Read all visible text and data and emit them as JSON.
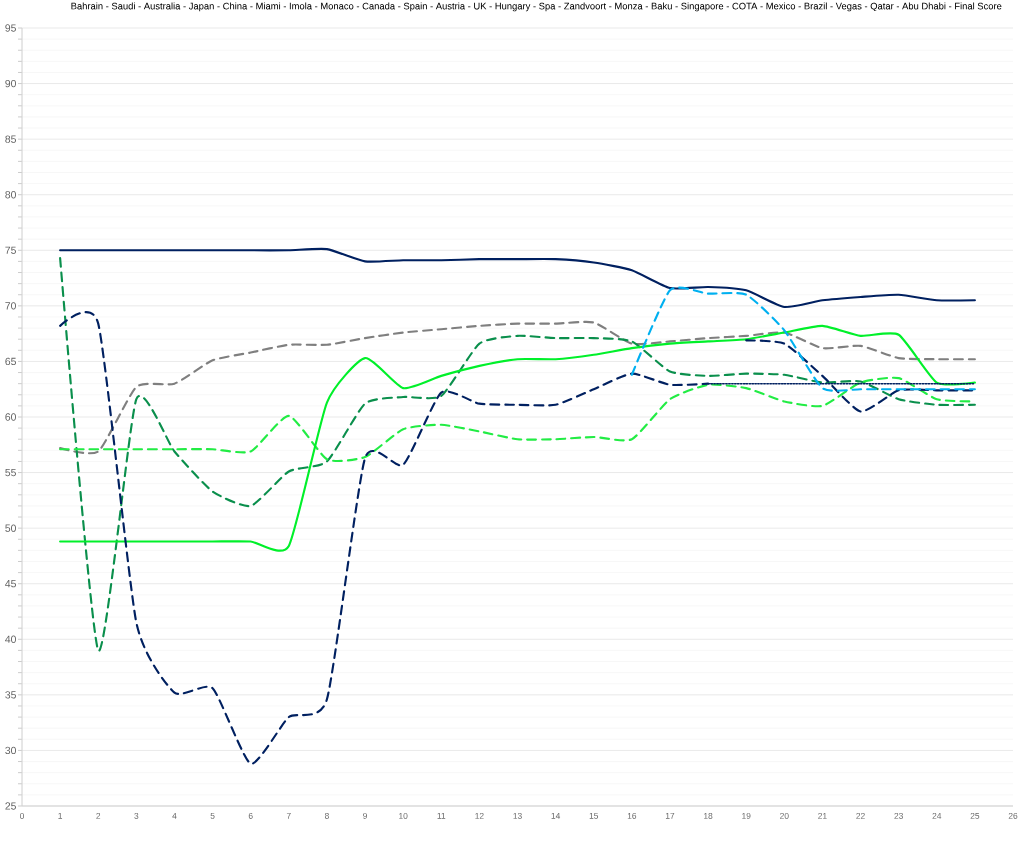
{
  "chart_data": {
    "type": "line",
    "title": "Bahrain - Saudi - Australia - Japan - China - Miami - Imola - Monaco - Canada - Spain - Austria - UK - Hungary - Spa - Zandvoort - Monza - Baku - Singapore - COTA - Mexico - Brazil - Vegas - Qatar - Abu Dhabi - Final Score",
    "x": [
      1,
      2,
      3,
      4,
      5,
      6,
      7,
      8,
      9,
      10,
      11,
      12,
      13,
      14,
      15,
      16,
      17,
      18,
      19,
      20,
      21,
      22,
      23,
      24,
      25
    ],
    "xlim": [
      0,
      26
    ],
    "xticks": [
      0,
      1,
      2,
      3,
      4,
      5,
      6,
      7,
      8,
      9,
      10,
      11,
      12,
      13,
      14,
      15,
      16,
      17,
      18,
      19,
      20,
      21,
      22,
      23,
      24,
      25,
      26
    ],
    "ylim": [
      25,
      95
    ],
    "yticks": [
      25,
      30,
      35,
      40,
      45,
      50,
      55,
      60,
      65,
      70,
      75,
      80,
      85,
      90,
      95
    ],
    "grid": "y",
    "series": [
      {
        "color": "#002060",
        "line_style": "solid",
        "values": [
          75,
          75,
          75,
          75,
          75,
          75,
          75,
          75.1,
          74.0,
          74.1,
          74.1,
          74.2,
          74.2,
          74.2,
          73.9,
          73.2,
          71.6,
          71.7,
          71.4,
          69.9,
          70.5,
          70.8,
          71.0,
          70.5,
          70.5
        ]
      },
      {
        "color": "#7f7f7f",
        "line_style": "dashed",
        "values": [
          57.2,
          56.9,
          62.7,
          63.0,
          65.1,
          65.8,
          66.5,
          66.5,
          67.1,
          67.6,
          67.9,
          68.2,
          68.4,
          68.4,
          68.5,
          66.6,
          66.8,
          67.1,
          67.3,
          67.6,
          66.2,
          66.4,
          65.3,
          65.2,
          65.2
        ]
      },
      {
        "color": "#0a8f4c",
        "line_style": "dashed",
        "values": [
          74.3,
          39.0,
          61.6,
          56.9,
          53.3,
          52.0,
          55.1,
          56.0,
          61.2,
          61.8,
          61.9,
          66.6,
          67.3,
          67.1,
          67.1,
          66.8,
          64.1,
          63.7,
          63.9,
          63.8,
          63.1,
          63.2,
          61.6,
          61.1,
          61.1
        ]
      },
      {
        "color": "#22ec44",
        "line_style": "dashed",
        "values": [
          57.1,
          57.1,
          57.1,
          57.1,
          57.1,
          56.9,
          60.1,
          56.2,
          56.4,
          58.9,
          59.3,
          58.7,
          58.0,
          58.0,
          58.2,
          58.0,
          61.6,
          62.9,
          62.6,
          61.4,
          61.0,
          63.1,
          63.5,
          61.6,
          61.4
        ]
      },
      {
        "color": "#00f02a",
        "line_style": "solid",
        "values": [
          48.8,
          48.8,
          48.8,
          48.8,
          48.8,
          48.8,
          48.4,
          61.3,
          65.3,
          62.6,
          63.7,
          64.6,
          65.2,
          65.2,
          65.6,
          66.2,
          66.6,
          66.8,
          67.0,
          67.6,
          68.2,
          67.3,
          67.4,
          63.1,
          63.1
        ]
      },
      {
        "color": "#002060",
        "line_style": "dashed",
        "x": [
          1,
          2,
          3,
          4,
          5,
          6,
          7,
          8,
          9,
          10,
          11,
          12,
          13,
          14,
          15,
          16,
          17,
          18
        ],
        "values": [
          68.2,
          68.4,
          41.5,
          35.2,
          35.6,
          28.8,
          33.0,
          34.6,
          56.3,
          55.7,
          62.2,
          61.2,
          61.1,
          61.1,
          62.5,
          63.9,
          62.9,
          63.0
        ]
      },
      {
        "color": "#002060",
        "line_style": "dashed",
        "x": [
          19,
          20,
          21,
          22,
          23,
          24,
          25
        ],
        "values": [
          66.9,
          66.6,
          63.7,
          60.5,
          62.4,
          62.4,
          62.4
        ]
      },
      {
        "color": "#002060",
        "line_style": "dotted",
        "x": [
          18,
          19,
          20,
          21,
          22,
          23,
          24,
          25
        ],
        "values": [
          63.0,
          63.0,
          63.0,
          63.0,
          63.0,
          63.0,
          63.0,
          63.0
        ]
      },
      {
        "color": "#00b0f0",
        "line_style": "dashed",
        "x": [
          16,
          17,
          18,
          19,
          20,
          21,
          22,
          23,
          24,
          25
        ],
        "values": [
          63.8,
          71.4,
          71.1,
          71.0,
          67.8,
          62.6,
          62.5,
          62.5,
          62.5,
          62.5
        ]
      }
    ]
  }
}
